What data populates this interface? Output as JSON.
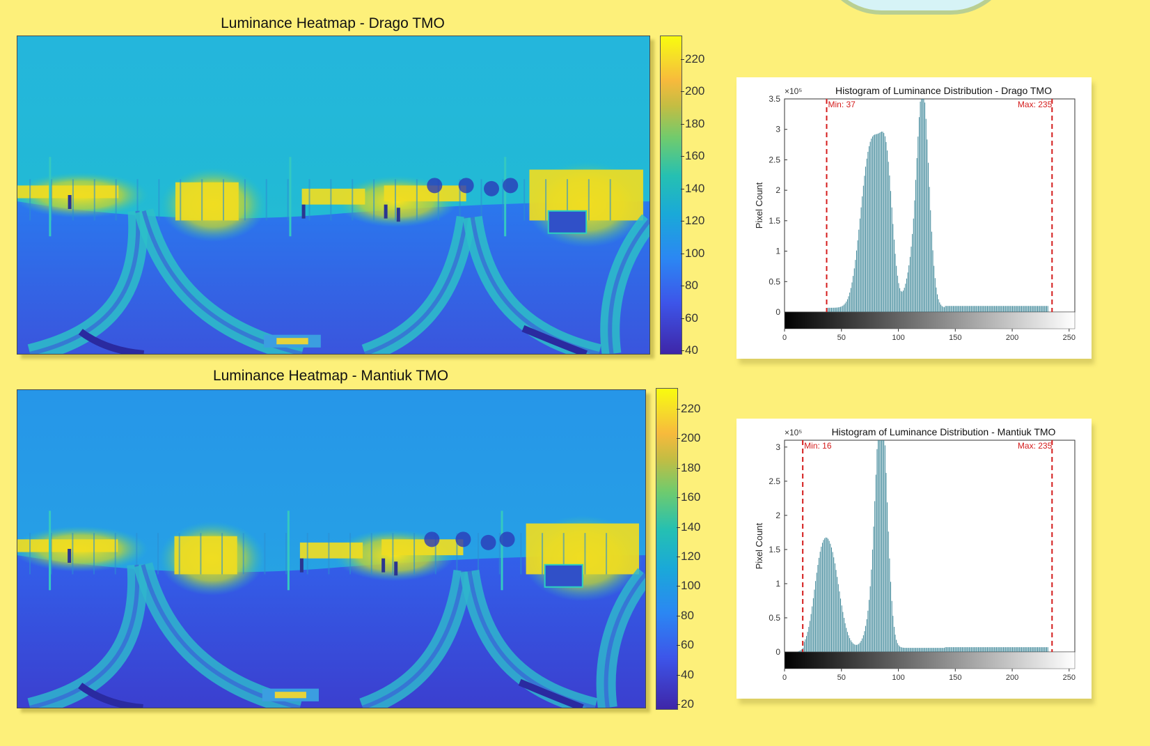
{
  "colors": {
    "page_background": "#fdf07a",
    "heatmap_low": "#3b2fbf",
    "heatmap_mid": "#23b4dc",
    "heatmap_high": "#f6ec1d",
    "histogram_bar": "#2d7d90",
    "marker_red": "#d41b1b"
  },
  "heatmaps": [
    {
      "title": "Luminance Heatmap - Drago TMO",
      "colorbar_ticks": [
        "220",
        "200",
        "180",
        "160",
        "140",
        "120",
        "100",
        "80",
        "60",
        "40"
      ]
    },
    {
      "title": "Luminance Heatmap - Mantiuk TMO",
      "colorbar_ticks": [
        "220",
        "200",
        "180",
        "160",
        "140",
        "120",
        "100",
        "80",
        "60",
        "40",
        "20"
      ]
    }
  ],
  "chart_data": [
    {
      "type": "bar",
      "title": "Histogram of Luminance Distribution - Drago TMO",
      "xlabel": "",
      "ylabel": "Pixel Count",
      "y_exponent_label": "×10⁵",
      "xlim": [
        0,
        255
      ],
      "ylim": [
        0,
        3.5
      ],
      "x_ticks": [
        0,
        50,
        100,
        150,
        200,
        250
      ],
      "y_ticks": [
        0,
        0.5,
        1,
        1.5,
        2,
        2.5,
        3,
        3.5
      ],
      "y_tick_labels": [
        "0",
        "0.5",
        "1",
        "1.5",
        "2",
        "2.5",
        "3",
        "3.5"
      ],
      "min_line": {
        "x": 37,
        "label": "Min: 37"
      },
      "max_line": {
        "x": 235,
        "label": "Max: 235"
      },
      "peaks": [
        {
          "x": 80,
          "height": 2.35,
          "width": 9
        },
        {
          "x": 90,
          "height": 1.3,
          "width": 5
        },
        {
          "x": 70,
          "height": 0.9,
          "width": 7
        },
        {
          "x": 121,
          "height": 3.6,
          "width": 5.5
        },
        {
          "x": 109,
          "height": 0.35,
          "width": 4
        }
      ],
      "baseline": 0.07,
      "tail_level": 0.1
    },
    {
      "type": "bar",
      "title": "Histogram of Luminance Distribution - Mantiuk TMO",
      "xlabel": "",
      "ylabel": "Pixel Count",
      "y_exponent_label": "×10⁵",
      "xlim": [
        0,
        255
      ],
      "ylim": [
        0,
        3.1
      ],
      "x_ticks": [
        0,
        50,
        100,
        150,
        200,
        250
      ],
      "y_ticks": [
        0,
        0.5,
        1,
        1.5,
        2,
        2.5,
        3
      ],
      "y_tick_labels": [
        "0",
        "0.5",
        "1",
        "1.5",
        "2",
        "2.5",
        "3"
      ],
      "min_line": {
        "x": 16,
        "label": "Min: 16"
      },
      "max_line": {
        "x": 235,
        "label": "Max: 235"
      },
      "peaks": [
        {
          "x": 40,
          "height": 1.35,
          "width": 8
        },
        {
          "x": 30,
          "height": 0.7,
          "width": 6
        },
        {
          "x": 85,
          "height": 3.4,
          "width": 5
        },
        {
          "x": 78,
          "height": 0.5,
          "width": 6
        }
      ],
      "baseline": 0.06,
      "tail_level": 0.07
    }
  ]
}
